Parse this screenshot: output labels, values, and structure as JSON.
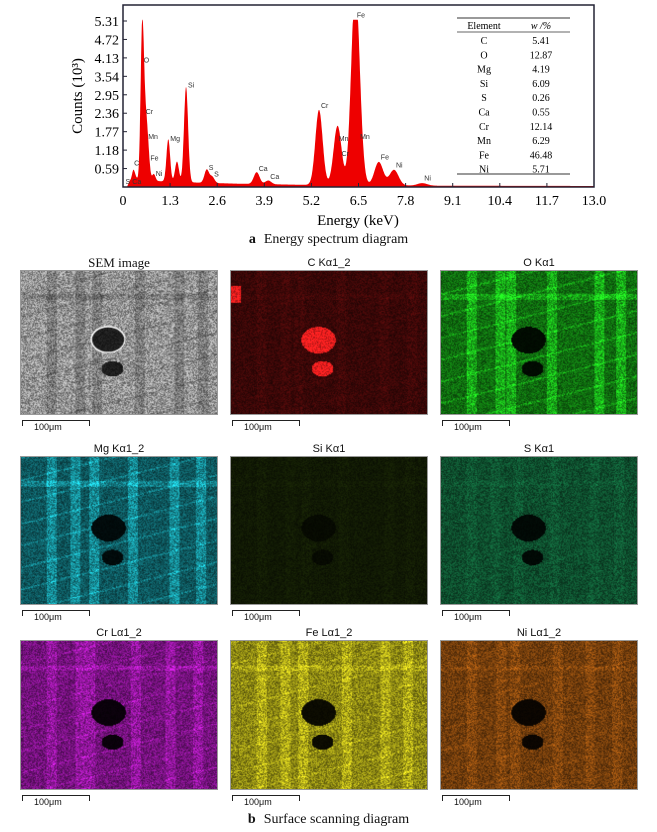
{
  "chart_data": {
    "type": "area",
    "ylabel": "Counts (10³)",
    "xlabel": "Energy (keV)",
    "xlim": [
      0,
      13.0
    ],
    "ylim": [
      0,
      5.6
    ],
    "xticks": [
      "0",
      "1.3",
      "2.6",
      "3.9",
      "5.2",
      "6.5",
      "7.8",
      "9.1",
      "10.4",
      "11.7",
      "13.0"
    ],
    "yticks": [
      "0.59",
      "1.18",
      "1.77",
      "2.36",
      "2.95",
      "3.54",
      "4.13",
      "4.72",
      "5.31"
    ],
    "color": "#ee0000",
    "grid": false,
    "peaks": [
      {
        "label": "C",
        "energy": 0.28,
        "counts": 0.3
      },
      {
        "label": "S",
        "energy": 0.18,
        "counts": 0.1
      },
      {
        "label": "Ca",
        "energy": 0.34,
        "counts": 0.1
      },
      {
        "label": "O",
        "energy": 0.52,
        "counts": 3.85
      },
      {
        "label": "Cr",
        "energy": 0.57,
        "counts": 2.2
      },
      {
        "label": "Mn",
        "energy": 0.64,
        "counts": 1.4
      },
      {
        "label": "Fe",
        "energy": 0.7,
        "counts": 0.72
      },
      {
        "label": "Ni",
        "energy": 0.85,
        "counts": 0.22
      },
      {
        "label": "Mg",
        "energy": 1.25,
        "counts": 1.35
      },
      {
        "label": "",
        "energy": 1.49,
        "counts": 0.65
      },
      {
        "label": "Si",
        "energy": 1.74,
        "counts": 3.05
      },
      {
        "label": "S",
        "energy": 2.31,
        "counts": 0.42
      },
      {
        "label": "S",
        "energy": 2.46,
        "counts": 0.2
      },
      {
        "label": "Ca",
        "energy": 3.69,
        "counts": 0.38
      },
      {
        "label": "Ca",
        "energy": 4.01,
        "counts": 0.12
      },
      {
        "label": "Cr",
        "energy": 5.41,
        "counts": 2.4
      },
      {
        "label": "Mn",
        "energy": 5.9,
        "counts": 1.05
      },
      {
        "label": "Cr",
        "energy": 5.95,
        "counts": 0.9
      },
      {
        "label": "Fe",
        "energy": 6.4,
        "counts": 5.3
      },
      {
        "label": "Mn",
        "energy": 6.49,
        "counts": 1.4
      },
      {
        "label": "Fe",
        "energy": 7.06,
        "counts": 0.75
      },
      {
        "label": "Ni",
        "energy": 7.48,
        "counts": 0.5
      },
      {
        "label": "Ni",
        "energy": 8.26,
        "counts": 0.08
      }
    ],
    "table": {
      "headers": [
        "Element",
        "w /%"
      ],
      "rows": [
        [
          "C",
          "5.41"
        ],
        [
          "O",
          "12.87"
        ],
        [
          "Mg",
          "4.19"
        ],
        [
          "Si",
          "6.09"
        ],
        [
          "S",
          "0.26"
        ],
        [
          "Ca",
          "0.55"
        ],
        [
          "Cr",
          "12.14"
        ],
        [
          "Mn",
          "6.29"
        ],
        [
          "Fe",
          "46.48"
        ],
        [
          "Ni",
          "5.71"
        ]
      ]
    }
  },
  "captions": {
    "a_letter": "a",
    "a_text": "Energy spectrum diagram",
    "b_letter": "b",
    "b_text": "Surface scanning diagram"
  },
  "maps": [
    {
      "title": "SEM image",
      "color": "#c8c8c8",
      "scale": "100μm"
    },
    {
      "title": "C Kα1_2",
      "color": "#ff2020",
      "scale": "100μm"
    },
    {
      "title": "O Kα1",
      "color": "#22ee22",
      "scale": "100μm"
    },
    {
      "title": "Mg Kα1_2",
      "color": "#22d8e8",
      "scale": "100μm"
    },
    {
      "title": "Si Kα1",
      "color": "#88cc22",
      "scale": "100μm"
    },
    {
      "title": "S Kα1",
      "color": "#22c070",
      "scale": "100μm"
    },
    {
      "title": "Cr Lα1_2",
      "color": "#d020e0",
      "scale": "100μm"
    },
    {
      "title": "Fe Lα1_2",
      "color": "#e8e020",
      "scale": "100μm"
    },
    {
      "title": "Ni Lα1_2",
      "color": "#e07818",
      "scale": "100μm"
    }
  ]
}
